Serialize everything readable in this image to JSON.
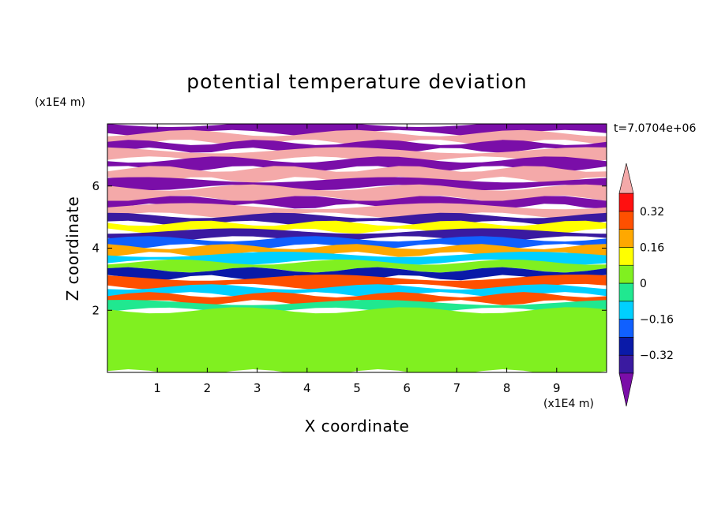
{
  "chart_data": {
    "type": "heatmap",
    "title": "potential temperature deviation",
    "xlabel": "X coordinate",
    "ylabel": "Z coordinate",
    "x_units": "(x1E4 m)",
    "y_units": "(x1E4 m)",
    "time_label": "t=7.0704e+06",
    "xlim": [
      0,
      10
    ],
    "ylim": [
      0,
      8
    ],
    "x_ticks": [
      "1",
      "2",
      "3",
      "4",
      "5",
      "6",
      "7",
      "8",
      "9"
    ],
    "y_ticks": [
      "2",
      "4",
      "6"
    ],
    "colorbar": {
      "tick_labels": [
        "0.32",
        "0.16",
        "0",
        "-0.16",
        "-0.32"
      ],
      "tick_values": [
        0.32,
        0.16,
        0,
        -0.16,
        -0.32
      ],
      "levels": [
        -0.4,
        -0.32,
        -0.24,
        -0.16,
        -0.08,
        0,
        0.08,
        0.16,
        0.24,
        0.32,
        0.4
      ],
      "colors_below": "#7a0ea8",
      "colors_above": "#f4a9a9",
      "colors": [
        "#3a1aa0",
        "#0a1aa8",
        "#1060ff",
        "#00d0ff",
        "#20e890",
        "#80f020",
        "#ffff00",
        "#ffa800",
        "#ff5000",
        "#ff1010"
      ]
    },
    "bands": [
      {
        "z": [
          7.7,
          8.0
        ],
        "value": -0.5
      },
      {
        "z": [
          7.4,
          7.7
        ],
        "value": 0.45
      },
      {
        "z": [
          7.15,
          7.4
        ],
        "value": -0.5
      },
      {
        "z": [
          6.85,
          7.15
        ],
        "value": 0.45
      },
      {
        "z": [
          6.55,
          6.85
        ],
        "value": -0.5
      },
      {
        "z": [
          6.2,
          6.55
        ],
        "value": 0.45
      },
      {
        "z": [
          5.95,
          6.2
        ],
        "value": -0.5
      },
      {
        "z": [
          5.6,
          5.95
        ],
        "value": 0.45
      },
      {
        "z": [
          5.35,
          5.6
        ],
        "value": -0.45
      },
      {
        "z": [
          5.05,
          5.35
        ],
        "value": 0.42
      },
      {
        "z": [
          4.8,
          5.05
        ],
        "value": -0.36
      },
      {
        "z": [
          4.55,
          4.8
        ],
        "value": 0.1
      },
      {
        "z": [
          4.3,
          4.55
        ],
        "value": -0.38
      },
      {
        "z": [
          4.05,
          4.3
        ],
        "value": -0.2
      },
      {
        "z": [
          3.8,
          4.05
        ],
        "value": 0.2
      },
      {
        "z": [
          3.55,
          3.8
        ],
        "value": -0.12
      },
      {
        "z": [
          3.3,
          3.55
        ],
        "value": 0.05
      },
      {
        "z": [
          3.05,
          3.3
        ],
        "value": -0.25
      },
      {
        "z": [
          2.75,
          3.05
        ],
        "value": 0.3
      },
      {
        "z": [
          2.5,
          2.75
        ],
        "value": -0.15
      },
      {
        "z": [
          2.25,
          2.5
        ],
        "value": 0.25
      },
      {
        "z": [
          2.0,
          2.25
        ],
        "value": -0.05
      },
      {
        "z": [
          0.0,
          2.0
        ],
        "value": 0.06
      }
    ]
  }
}
